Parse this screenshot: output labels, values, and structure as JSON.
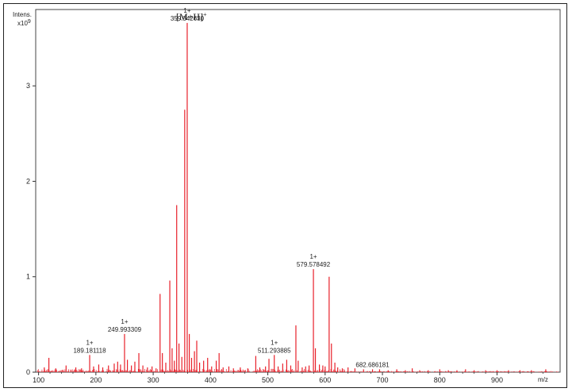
{
  "chart_data": {
    "type": "bar",
    "ylabel": "Intens.",
    "yscale_label": "x10",
    "yscale_exp": "9",
    "xlabel": "m/z",
    "xlim": [
      95,
      1010
    ],
    "ylim": [
      0,
      3.8
    ],
    "xticks": [
      100,
      200,
      300,
      400,
      500,
      600,
      700,
      800,
      900
    ],
    "yticks": [
      0,
      1,
      2,
      3
    ],
    "series_color": "#e8202a",
    "ion_label": "[M+H]",
    "ion_charge_sup": "+",
    "annotations": [
      {
        "mz": 359.34263,
        "intensity": 3.66,
        "charge": "1+",
        "label": "359.342630"
      },
      {
        "mz": 579.578492,
        "intensity": 1.08,
        "charge": "1+",
        "label": "579.578492"
      },
      {
        "mz": 249.993309,
        "intensity": 0.4,
        "charge": "1+",
        "label": "249.993309"
      },
      {
        "mz": 189.181118,
        "intensity": 0.18,
        "charge": "1+",
        "label": "189.181118"
      },
      {
        "mz": 511.293885,
        "intensity": 0.18,
        "charge": "1+",
        "label": "511.293885"
      },
      {
        "mz": 682.686181,
        "intensity": 0.03,
        "charge": "",
        "label": "682.686181"
      }
    ],
    "peaks": [
      [
        110,
        0.05
      ],
      [
        118,
        0.15
      ],
      [
        130,
        0.04
      ],
      [
        148,
        0.07
      ],
      [
        165,
        0.05
      ],
      [
        175,
        0.04
      ],
      [
        189.18,
        0.18
      ],
      [
        196,
        0.06
      ],
      [
        205,
        0.08
      ],
      [
        212,
        0.05
      ],
      [
        222,
        0.07
      ],
      [
        232,
        0.09
      ],
      [
        238,
        0.11
      ],
      [
        243,
        0.08
      ],
      [
        249.99,
        0.4
      ],
      [
        255,
        0.13
      ],
      [
        262,
        0.07
      ],
      [
        268,
        0.11
      ],
      [
        275,
        0.2
      ],
      [
        282,
        0.07
      ],
      [
        290,
        0.05
      ],
      [
        298,
        0.06
      ],
      [
        305,
        0.04
      ],
      [
        312,
        0.82
      ],
      [
        316,
        0.2
      ],
      [
        322,
        0.1
      ],
      [
        329,
        0.96
      ],
      [
        333,
        0.25
      ],
      [
        337,
        0.12
      ],
      [
        341,
        1.75
      ],
      [
        345,
        0.3
      ],
      [
        350,
        0.16
      ],
      [
        355,
        2.75
      ],
      [
        359.34,
        3.66
      ],
      [
        363,
        0.4
      ],
      [
        367,
        0.15
      ],
      [
        372,
        0.22
      ],
      [
        376,
        0.33
      ],
      [
        381,
        0.1
      ],
      [
        388,
        0.12
      ],
      [
        395,
        0.15
      ],
      [
        402,
        0.06
      ],
      [
        410,
        0.12
      ],
      [
        415,
        0.2
      ],
      [
        422,
        0.05
      ],
      [
        432,
        0.06
      ],
      [
        440,
        0.04
      ],
      [
        452,
        0.05
      ],
      [
        465,
        0.04
      ],
      [
        479,
        0.17
      ],
      [
        486,
        0.05
      ],
      [
        496,
        0.06
      ],
      [
        502,
        0.14
      ],
      [
        511.29,
        0.18
      ],
      [
        518,
        0.06
      ],
      [
        526,
        0.09
      ],
      [
        533,
        0.13
      ],
      [
        540,
        0.07
      ],
      [
        549,
        0.49
      ],
      [
        553,
        0.12
      ],
      [
        560,
        0.05
      ],
      [
        566,
        0.06
      ],
      [
        572,
        0.07
      ],
      [
        579.58,
        1.08
      ],
      [
        583,
        0.25
      ],
      [
        590,
        0.08
      ],
      [
        596,
        0.07
      ],
      [
        600,
        0.06
      ],
      [
        607,
        1.0
      ],
      [
        611,
        0.3
      ],
      [
        617,
        0.1
      ],
      [
        622,
        0.05
      ],
      [
        630,
        0.04
      ],
      [
        640,
        0.05
      ],
      [
        652,
        0.04
      ],
      [
        667,
        0.03
      ],
      [
        682.69,
        0.03
      ],
      [
        695,
        0.03
      ],
      [
        710,
        0.02
      ],
      [
        725,
        0.03
      ],
      [
        740,
        0.02
      ],
      [
        752,
        0.04
      ],
      [
        765,
        0.02
      ],
      [
        780,
        0.02
      ],
      [
        800,
        0.03
      ],
      [
        815,
        0.02
      ],
      [
        830,
        0.02
      ],
      [
        845,
        0.03
      ],
      [
        860,
        0.02
      ],
      [
        880,
        0.02
      ],
      [
        900,
        0.02
      ],
      [
        920,
        0.02
      ],
      [
        940,
        0.02
      ],
      [
        960,
        0.02
      ],
      [
        985,
        0.03
      ]
    ]
  }
}
